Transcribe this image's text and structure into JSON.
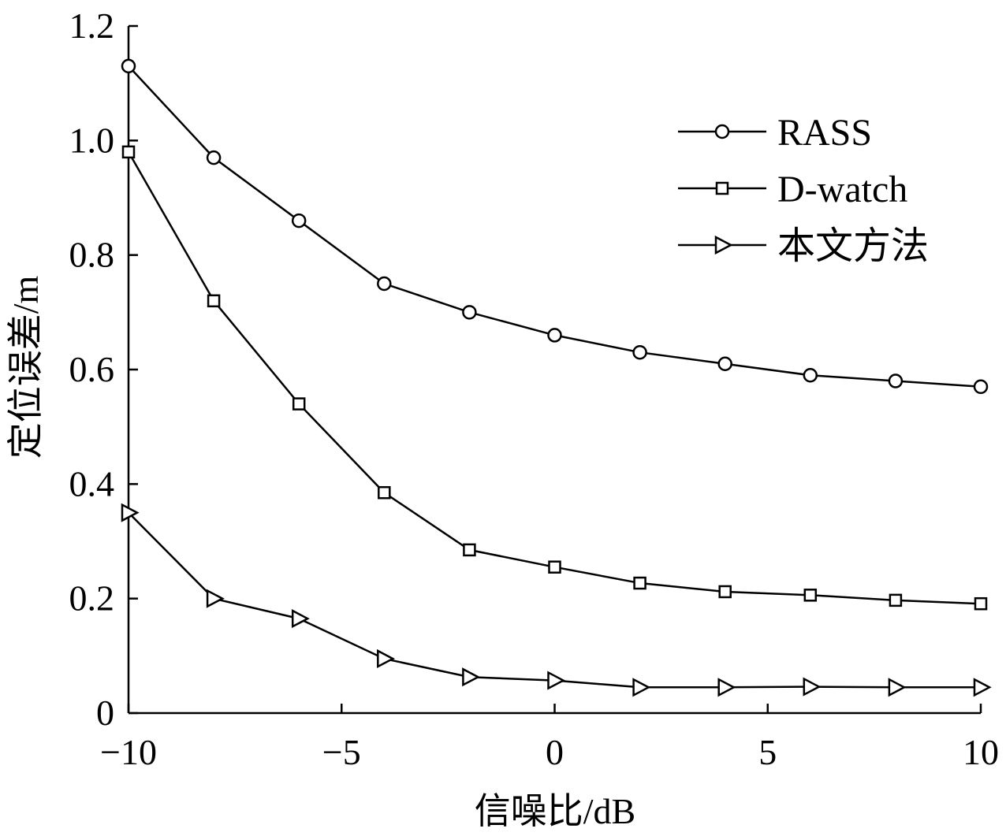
{
  "chart_data": {
    "type": "line",
    "xlabel": "信噪比/dB",
    "ylabel": "定位误差/m",
    "xlim": [
      -10,
      10
    ],
    "ylim": [
      0,
      1.2
    ],
    "xticks": [
      -10,
      -5,
      0,
      5,
      10
    ],
    "xtick_labels": [
      "−10",
      "−5",
      "0",
      "5",
      "10"
    ],
    "yticks": [
      0,
      0.2,
      0.4,
      0.6,
      0.8,
      1.0,
      1.2
    ],
    "ytick_labels": [
      "0",
      "0.2",
      "0.4",
      "0.6",
      "0.8",
      "1.0",
      "1.2"
    ],
    "grid": false,
    "legend_position": "top-right",
    "x": [
      -10,
      -8,
      -6,
      -4,
      -2,
      0,
      2,
      4,
      6,
      8,
      10
    ],
    "series": [
      {
        "name": "RASS",
        "marker": "circle",
        "values": [
          1.13,
          0.97,
          0.86,
          0.75,
          0.7,
          0.66,
          0.63,
          0.61,
          0.59,
          0.58,
          0.57
        ]
      },
      {
        "name": "D-watch",
        "marker": "square",
        "values": [
          0.98,
          0.72,
          0.54,
          0.385,
          0.285,
          0.255,
          0.227,
          0.212,
          0.206,
          0.197,
          0.191
        ]
      },
      {
        "name": "本文方法",
        "marker": "triangle-right",
        "values": [
          0.35,
          0.2,
          0.165,
          0.095,
          0.063,
          0.057,
          0.045,
          0.045,
          0.046,
          0.045,
          0.045
        ]
      }
    ]
  }
}
